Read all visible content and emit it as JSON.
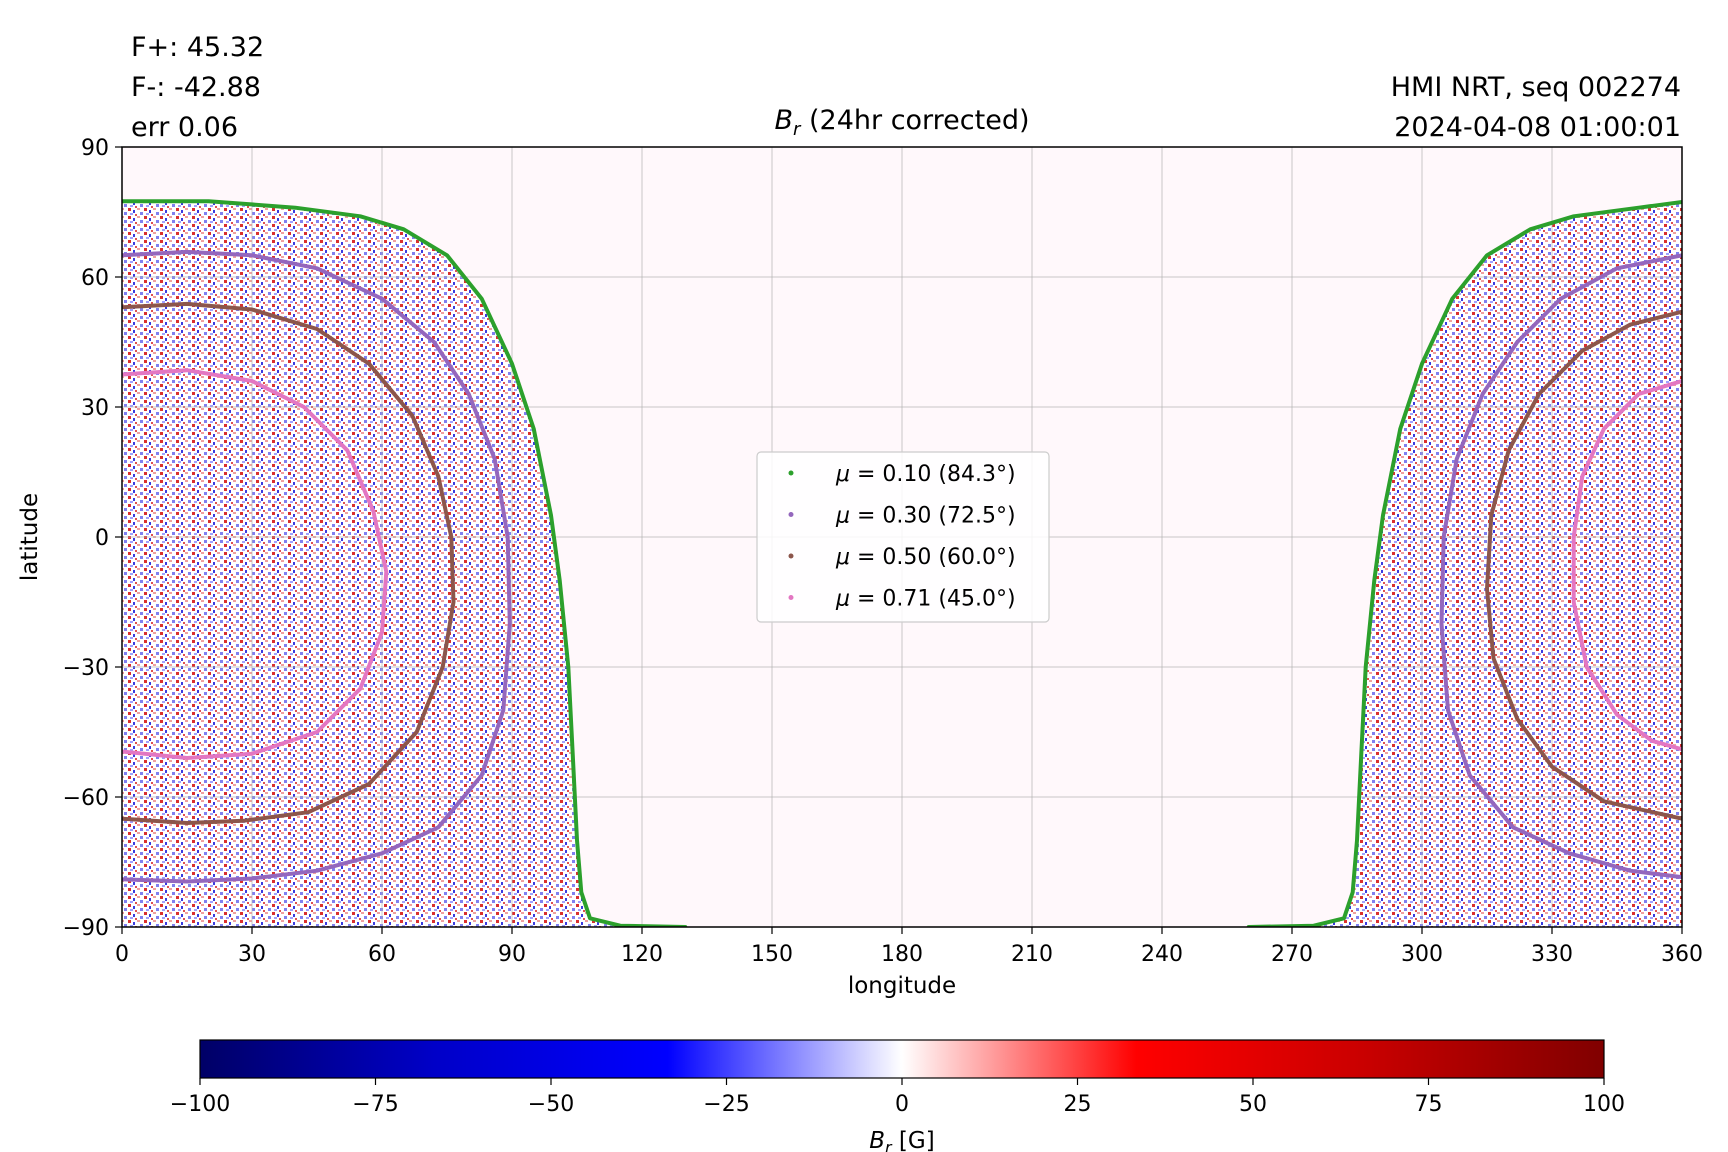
{
  "header": {
    "flux_pos": "F+: 45.32",
    "flux_neg": "F-: -42.88",
    "err": "err 0.06",
    "instrument": "HMI NRT, seq 002274",
    "timestamp": "2024-04-08 01:00:01"
  },
  "chart_data": {
    "type": "heatmap",
    "title_symbol": "B",
    "title_subscript": "r",
    "title_rest": " (24hr corrected)",
    "xlabel": "longitude",
    "ylabel": "latitude",
    "xlim": [
      0,
      360
    ],
    "ylim": [
      -90,
      90
    ],
    "xticks": [
      0,
      30,
      60,
      90,
      120,
      150,
      180,
      210,
      240,
      270,
      300,
      330,
      360
    ],
    "yticks": [
      -90,
      -60,
      -30,
      0,
      30,
      60,
      90
    ],
    "ytick_labels": [
      "−90",
      "−60",
      "−30",
      "0",
      "30",
      "60",
      "90"
    ],
    "grid": true,
    "colormap": "seismic",
    "colorbar": {
      "label_symbol": "B",
      "label_subscript": "r",
      "label_rest": " [G]",
      "range": [
        -100,
        100
      ],
      "ticks": [
        -100,
        -75,
        -50,
        -25,
        0,
        25,
        50,
        75,
        100
      ],
      "tick_labels": [
        "−100",
        "−75",
        "−50",
        "−25",
        "0",
        "25",
        "50",
        "75",
        "100"
      ],
      "stops": [
        "#000066",
        "#0000c8",
        "#0000ff",
        "#ffffff",
        "#ff0000",
        "#c80000",
        "#800000"
      ]
    },
    "legend_placement": "center",
    "data_region": {
      "left_lon_range": [
        0,
        105
      ],
      "right_lon_range": [
        285,
        360
      ],
      "note_color_fill": "#fff8fb"
    },
    "series": [
      {
        "name": "μ = 0.10 (84.3°)",
        "label_prefix": "μ",
        "label_rest": " = 0.10 (84.3°)",
        "color": "#2ca02c",
        "segments": [
          [
            [
              0,
              77.5
            ],
            [
              20,
              77.5
            ],
            [
              40,
              76
            ],
            [
              55,
              74
            ],
            [
              65,
              71
            ],
            [
              75,
              65
            ],
            [
              83,
              55
            ],
            [
              90,
              40
            ],
            [
              95,
              25
            ],
            [
              99,
              5
            ],
            [
              101,
              -10
            ],
            [
              103,
              -30
            ],
            [
              104,
              -50
            ],
            [
              105,
              -70
            ],
            [
              106,
              -82
            ],
            [
              108,
              -88
            ],
            [
              115,
              -89.7
            ],
            [
              130,
              -90
            ]
          ],
          [
            [
              260,
              -90
            ],
            [
              275,
              -89.7
            ],
            [
              282,
              -88
            ],
            [
              284,
              -82
            ],
            [
              285,
              -70
            ],
            [
              286,
              -50
            ],
            [
              287,
              -30
            ],
            [
              289,
              -10
            ],
            [
              291,
              5
            ],
            [
              295,
              25
            ],
            [
              300,
              40
            ],
            [
              307,
              55
            ],
            [
              315,
              65
            ],
            [
              325,
              71
            ],
            [
              335,
              74
            ],
            [
              350,
              76
            ],
            [
              360,
              77.3
            ]
          ]
        ]
      },
      {
        "name": "μ = 0.30 (72.5°)",
        "label_prefix": "μ",
        "label_rest": " = 0.30 (72.5°)",
        "color": "#9467bd",
        "segments": [
          [
            [
              0,
              65
            ],
            [
              15,
              65.8
            ],
            [
              30,
              65
            ],
            [
              45,
              62
            ],
            [
              60,
              55
            ],
            [
              72,
              45
            ],
            [
              80,
              33
            ],
            [
              86,
              18
            ],
            [
              89,
              0
            ],
            [
              89.5,
              -20
            ],
            [
              88,
              -40
            ],
            [
              83,
              -55
            ],
            [
              73,
              -67
            ],
            [
              60,
              -73
            ],
            [
              45,
              -77
            ],
            [
              30,
              -78.8
            ],
            [
              15,
              -79.5
            ],
            [
              0,
              -79
            ]
          ],
          [
            [
              360,
              65
            ],
            [
              345,
              62
            ],
            [
              332,
              55
            ],
            [
              322,
              45
            ],
            [
              314,
              33
            ],
            [
              308,
              18
            ],
            [
              305,
              0
            ],
            [
              304.5,
              -20
            ],
            [
              306,
              -40
            ],
            [
              311,
              -55
            ],
            [
              321,
              -67
            ],
            [
              334,
              -73
            ],
            [
              348,
              -77
            ],
            [
              360,
              -78.5
            ]
          ]
        ]
      },
      {
        "name": "μ = 0.50 (60.0°)",
        "label_prefix": "μ",
        "label_rest": " = 0.50 (60.0°)",
        "color": "#8c564b",
        "segments": [
          [
            [
              0,
              53
            ],
            [
              15,
              53.8
            ],
            [
              30,
              52.5
            ],
            [
              45,
              48
            ],
            [
              57,
              40
            ],
            [
              67,
              28
            ],
            [
              73,
              14
            ],
            [
              76,
              0
            ],
            [
              76.5,
              -15
            ],
            [
              74,
              -30
            ],
            [
              68,
              -45
            ],
            [
              57,
              -57
            ],
            [
              43,
              -63.5
            ],
            [
              28,
              -65.5
            ],
            [
              15,
              -66
            ],
            [
              0,
              -65
            ]
          ],
          [
            [
              360,
              52
            ],
            [
              348,
              49
            ],
            [
              337,
              43
            ],
            [
              327,
              33
            ],
            [
              320,
              20
            ],
            [
              316,
              5
            ],
            [
              315,
              -12
            ],
            [
              316.5,
              -28
            ],
            [
              322,
              -42
            ],
            [
              330,
              -53
            ],
            [
              342,
              -61
            ],
            [
              360,
              -65
            ]
          ]
        ]
      },
      {
        "name": "μ = 0.71 (45.0°)",
        "label_prefix": "μ",
        "label_rest": " = 0.71 (45.0°)",
        "color": "#e377c2",
        "segments": [
          [
            [
              0,
              37.5
            ],
            [
              15,
              38.5
            ],
            [
              30,
              36
            ],
            [
              42,
              30
            ],
            [
              52,
              20
            ],
            [
              58,
              6
            ],
            [
              61,
              -8
            ],
            [
              60,
              -22
            ],
            [
              55,
              -35
            ],
            [
              45,
              -45
            ],
            [
              30,
              -50
            ],
            [
              15,
              -51
            ],
            [
              0,
              -49.5
            ]
          ],
          [
            [
              360,
              36
            ],
            [
              350,
              33
            ],
            [
              342,
              25
            ],
            [
              337,
              14
            ],
            [
              335,
              0
            ],
            [
              335,
              -15
            ],
            [
              338,
              -30
            ],
            [
              345,
              -41
            ],
            [
              353,
              -47
            ],
            [
              360,
              -49
            ]
          ]
        ]
      }
    ]
  }
}
